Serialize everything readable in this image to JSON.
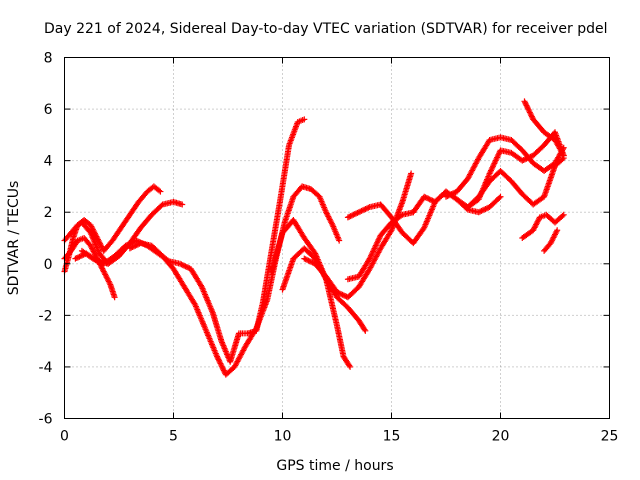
{
  "chart_data": {
    "type": "scatter",
    "title": "Day 221 of 2024, Sidereal Day-to-day VTEC variation (SDTVAR) for receiver pdel",
    "xlabel": "GPS time / hours",
    "ylabel": "SDTVAR / TECUs",
    "xlim": [
      0,
      25
    ],
    "ylim": [
      -6,
      8
    ],
    "xticks": [
      0,
      5,
      10,
      15,
      20,
      25
    ],
    "yticks": [
      -6,
      -4,
      -2,
      0,
      2,
      4,
      6,
      8
    ],
    "grid": true,
    "marker": "+",
    "color": "#ff0000",
    "series": [
      {
        "name": "track-1",
        "x": [
          0.0,
          0.3,
          0.6,
          0.9,
          1.2,
          1.5,
          1.8,
          2.1,
          2.3
        ],
        "y": [
          0.2,
          0.5,
          0.9,
          1.0,
          0.7,
          0.2,
          -0.3,
          -0.8,
          -1.3
        ]
      },
      {
        "name": "track-2",
        "x": [
          0.0,
          0.2,
          0.4,
          0.6,
          0.8,
          1.0,
          1.2,
          1.4,
          1.6,
          1.8,
          2.0
        ],
        "y": [
          -0.3,
          0.3,
          1.0,
          1.5,
          1.6,
          1.4,
          1.2,
          0.8,
          0.4,
          0.2,
          0.0
        ]
      },
      {
        "name": "track-3",
        "x": [
          0.0,
          0.3,
          0.6,
          0.9,
          1.2,
          1.5,
          1.8,
          2.2,
          2.6,
          3.0,
          3.4,
          3.8,
          4.1,
          4.4
        ],
        "y": [
          0.9,
          1.2,
          1.5,
          1.7,
          1.5,
          1.0,
          0.5,
          0.9,
          1.4,
          1.9,
          2.4,
          2.8,
          3.0,
          2.8
        ]
      },
      {
        "name": "track-4",
        "x": [
          0.5,
          1.0,
          1.5,
          2.0,
          2.5,
          3.0,
          3.5,
          4.0,
          4.5,
          5.0,
          5.4
        ],
        "y": [
          0.2,
          0.4,
          0.1,
          0.0,
          0.3,
          0.8,
          1.4,
          1.9,
          2.3,
          2.4,
          2.3
        ]
      },
      {
        "name": "track-5",
        "x": [
          0.8,
          1.3,
          1.8,
          2.3,
          2.8,
          3.3,
          3.8,
          4.3,
          4.8,
          5.3,
          5.8,
          6.3,
          6.8,
          7.2,
          7.6,
          8.0,
          8.4,
          8.8,
          9.1,
          9.5,
          9.9,
          10.3,
          10.7,
          11.0
        ],
        "y": [
          0.5,
          0.2,
          0.0,
          0.3,
          0.7,
          0.9,
          0.7,
          0.4,
          0.1,
          0.0,
          -0.2,
          -0.9,
          -1.9,
          -3.0,
          -3.8,
          -2.7,
          -2.7,
          -2.6,
          -1.5,
          0.5,
          2.5,
          4.6,
          5.5,
          5.6
        ]
      },
      {
        "name": "track-6",
        "x": [
          3.0,
          3.5,
          4.0,
          4.5,
          5.0,
          5.5,
          6.0,
          6.5,
          7.0,
          7.4,
          7.8,
          8.3,
          8.8,
          9.3,
          9.7,
          10.1,
          10.5,
          10.9,
          11.3,
          11.7,
          12.0,
          12.3,
          12.6
        ],
        "y": [
          0.6,
          0.8,
          0.7,
          0.3,
          -0.2,
          -0.9,
          -1.6,
          -2.6,
          -3.6,
          -4.3,
          -4.0,
          -3.2,
          -2.5,
          -1.4,
          0.2,
          1.6,
          2.6,
          3.0,
          2.9,
          2.6,
          2.0,
          1.5,
          0.9
        ]
      },
      {
        "name": "track-7",
        "x": [
          9.5,
          10.0,
          10.5,
          11.0,
          11.5,
          12.0,
          12.5,
          12.8,
          13.1
        ],
        "y": [
          -0.3,
          1.2,
          1.7,
          1.0,
          0.4,
          -0.6,
          -2.4,
          -3.6,
          -4.0
        ]
      },
      {
        "name": "track-8",
        "x": [
          10.0,
          10.5,
          11.0,
          11.5,
          12.0,
          12.5,
          13.0,
          13.5,
          13.8
        ],
        "y": [
          -1.0,
          0.2,
          0.6,
          0.2,
          -0.6,
          -1.3,
          -1.7,
          -2.2,
          -2.6
        ]
      },
      {
        "name": "track-9",
        "x": [
          11.0,
          11.5,
          12.0,
          12.5,
          13.0,
          13.5,
          14.0,
          14.5,
          15.0,
          15.5,
          15.9
        ],
        "y": [
          0.2,
          0.0,
          -0.5,
          -1.1,
          -1.3,
          -0.9,
          -0.2,
          0.6,
          1.3,
          2.4,
          3.5
        ]
      },
      {
        "name": "track-10",
        "x": [
          13.0,
          13.5,
          14.0,
          14.5,
          15.0,
          15.5,
          16.0
        ],
        "y": [
          -0.6,
          -0.5,
          0.2,
          1.1,
          1.6,
          1.9,
          2.0
        ]
      },
      {
        "name": "track-11",
        "x": [
          13.0,
          13.5,
          14.0,
          14.5,
          15.0,
          15.5,
          16.0,
          16.5,
          17.0,
          17.5,
          18.0,
          18.5,
          19.0,
          19.5,
          20.0
        ],
        "y": [
          1.8,
          2.0,
          2.2,
          2.3,
          1.8,
          1.2,
          0.8,
          1.4,
          2.4,
          2.8,
          2.5,
          2.1,
          2.0,
          2.2,
          2.6
        ]
      },
      {
        "name": "track-12",
        "x": [
          16.0,
          16.5,
          17.0,
          17.5,
          18.0,
          18.5,
          19.0,
          19.5,
          20.0,
          20.5,
          21.0,
          21.5,
          22.0,
          22.5,
          22.9
        ],
        "y": [
          2.0,
          2.6,
          2.4,
          2.8,
          2.5,
          2.2,
          2.6,
          3.2,
          3.6,
          3.2,
          2.7,
          2.3,
          2.6,
          3.8,
          4.1
        ]
      },
      {
        "name": "track-13",
        "x": [
          17.5,
          18.0,
          18.5,
          19.0,
          19.5,
          20.0,
          20.5,
          21.0,
          21.5,
          22.0,
          22.5,
          22.9
        ],
        "y": [
          2.6,
          2.8,
          3.3,
          4.1,
          4.8,
          4.9,
          4.8,
          4.4,
          3.9,
          3.6,
          3.9,
          4.5
        ]
      },
      {
        "name": "track-14",
        "x": [
          18.5,
          19.0,
          19.5,
          20.0,
          20.5,
          21.0,
          21.5,
          22.0,
          22.5,
          22.9
        ],
        "y": [
          2.2,
          2.5,
          3.5,
          4.4,
          4.3,
          4.0,
          4.2,
          4.6,
          5.1,
          4.2
        ]
      },
      {
        "name": "track-15",
        "x": [
          21.1,
          21.5,
          22.0,
          22.5,
          22.9
        ],
        "y": [
          6.3,
          5.6,
          5.1,
          4.8,
          4.2
        ]
      },
      {
        "name": "track-16",
        "x": [
          21.0,
          21.5,
          21.8,
          22.1,
          22.5,
          22.9
        ],
        "y": [
          1.0,
          1.3,
          1.8,
          1.9,
          1.6,
          1.9
        ]
      },
      {
        "name": "track-17",
        "x": [
          22.0,
          22.3,
          22.6
        ],
        "y": [
          0.5,
          0.8,
          1.3
        ]
      }
    ]
  }
}
